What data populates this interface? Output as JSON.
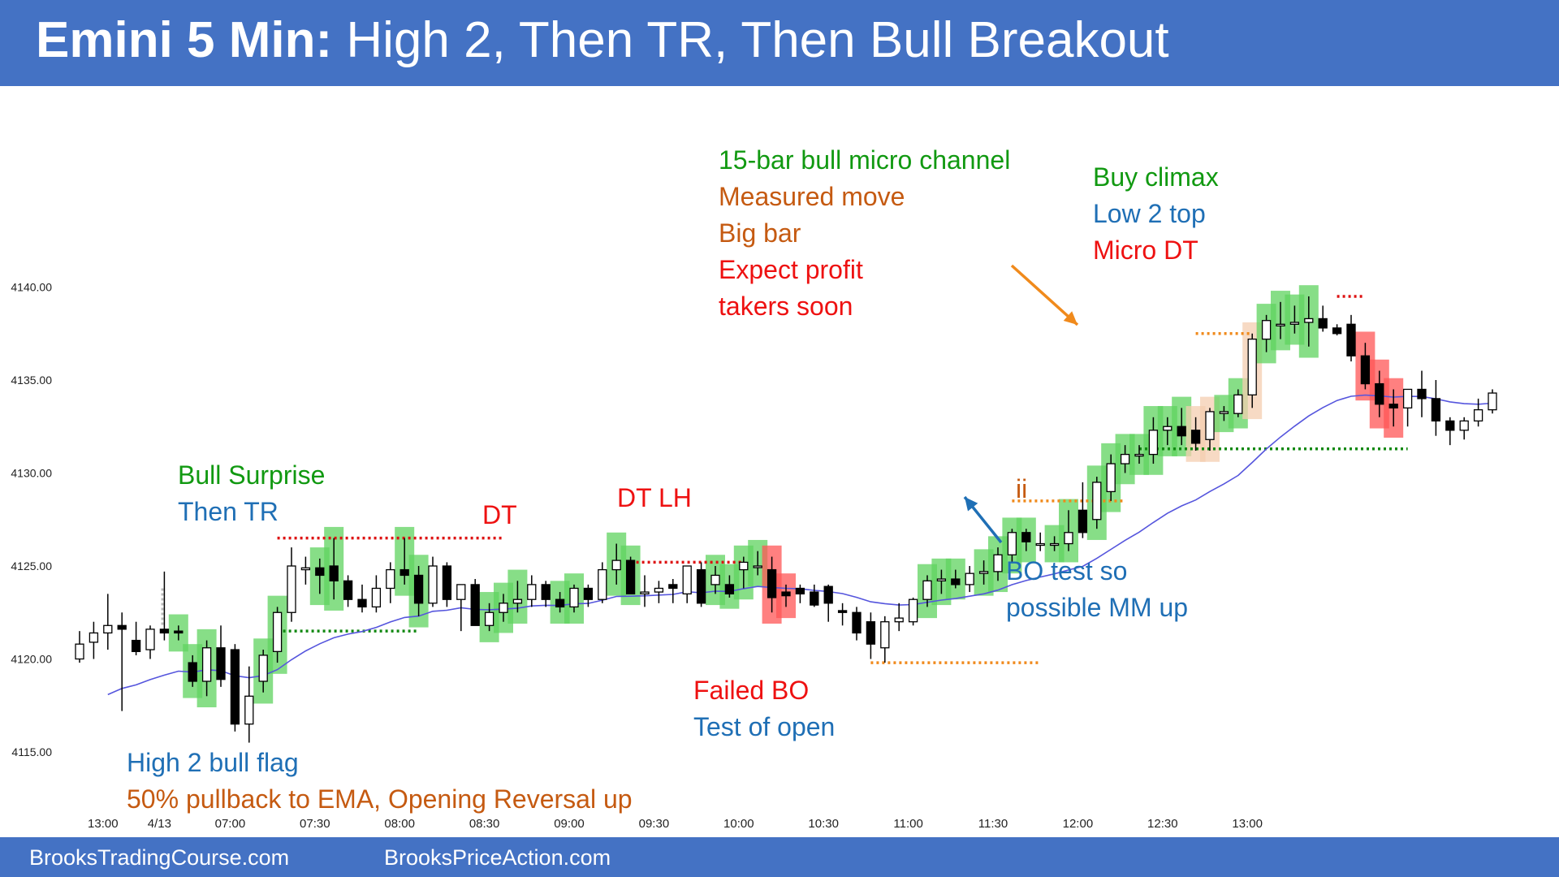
{
  "title": {
    "bold": "Emini 5 Min:",
    "rest": "High 2, Then TR, Then Bull Breakout"
  },
  "footer": {
    "left": "BrooksTradingCourse.com",
    "right": "BrooksPriceAction.com"
  },
  "colors": {
    "header": "#4472C4",
    "bull_highlight": "#5FD35F",
    "bear_highlight": "#FF5555",
    "inside_highlight": "#F4CDB0",
    "ema": "#5555DD",
    "green_text": "#119911",
    "blue_text": "#1F6FB5",
    "orange_text": "#C55A11",
    "red_text": "#EE1111",
    "dotted_orange": "#F08A1C",
    "dotted_green": "#118811",
    "dotted_red": "#DD1111"
  },
  "annotations": {
    "bull_surprise": [
      {
        "text": "Bull Surprise",
        "color": "#119911"
      },
      {
        "text": "Then TR",
        "color": "#1F6FB5"
      }
    ],
    "high2": [
      {
        "text": "High 2 bull flag",
        "color": "#1F6FB5"
      },
      {
        "text": "50% pullback to EMA, Opening Reversal up",
        "color": "#C55A11"
      }
    ],
    "dt": [
      {
        "text": "DT",
        "color": "#EE1111"
      }
    ],
    "dt_lh": [
      {
        "text": "DT LH",
        "color": "#EE1111"
      }
    ],
    "failed_bo": [
      {
        "text": "Failed BO",
        "color": "#EE1111"
      },
      {
        "text": "Test of open",
        "color": "#1F6FB5"
      }
    ],
    "micro_channel": [
      {
        "text": "15-bar bull micro channel",
        "color": "#119911"
      },
      {
        "text": "Measured move",
        "color": "#C55A11"
      },
      {
        "text": "Big bar",
        "color": "#C55A11"
      },
      {
        "text": "Expect profit",
        "color": "#EE1111"
      },
      {
        "text": "takers soon",
        "color": "#EE1111"
      }
    ],
    "buy_climax": [
      {
        "text": "Buy climax",
        "color": "#119911"
      },
      {
        "text": "Low 2 top",
        "color": "#1F6FB5"
      },
      {
        "text": "Micro DT",
        "color": "#EE1111"
      }
    ],
    "bo_test": [
      {
        "text": "BO test so",
        "color": "#1F6FB5"
      },
      {
        "text": "possible MM up",
        "color": "#1F6FB5"
      }
    ],
    "ii": [
      {
        "text": "ii",
        "color": "#C55A11"
      }
    ]
  },
  "chart_data": {
    "type": "candlestick",
    "y_ticks": [
      "4115.00",
      "4120.00",
      "4125.00",
      "4130.00",
      "4135.00",
      "4140.00"
    ],
    "y_tick_values": [
      4115,
      4120,
      4125,
      4130,
      4135,
      4140
    ],
    "ylim": [
      4113.5,
      4147.5
    ],
    "x_ticks": [
      "13:00",
      "4/13",
      "07:00",
      "07:30",
      "08:00",
      "08:30",
      "09:00",
      "09:30",
      "10:00",
      "10:30",
      "11:00",
      "11:30",
      "12:00",
      "12:30",
      "13:00"
    ],
    "x_tick_bars": [
      2,
      6,
      11,
      17,
      23,
      29,
      35,
      41,
      47,
      53,
      59,
      65,
      71,
      77,
      83
    ],
    "bars": [
      [
        4120.0,
        4121.5,
        4119.8,
        4120.8
      ],
      [
        4120.9,
        4122.0,
        4120.0,
        4121.4
      ],
      [
        4121.4,
        4123.5,
        4120.5,
        4121.8
      ],
      [
        4121.8,
        4122.5,
        4117.2,
        4121.6
      ],
      [
        4121.0,
        4122.0,
        4120.2,
        4120.4
      ],
      [
        4120.5,
        4121.8,
        4120.0,
        4121.6
      ],
      [
        4121.6,
        4124.7,
        4121.0,
        4121.4
      ],
      [
        4121.5,
        4121.8,
        4121.0,
        4121.4
      ],
      [
        4119.8,
        4120.2,
        4118.5,
        4118.8
      ],
      [
        4118.8,
        4121.0,
        4118.0,
        4120.6
      ],
      [
        4120.6,
        4121.8,
        4118.5,
        4118.9
      ],
      [
        4120.5,
        4120.8,
        4116.1,
        4116.5
      ],
      [
        4116.5,
        4119.6,
        4115.5,
        4118.0
      ],
      [
        4118.8,
        4120.5,
        4118.2,
        4120.2
      ],
      [
        4120.4,
        4122.8,
        4119.8,
        4122.5
      ],
      [
        4122.5,
        4126.0,
        4122.0,
        4125.0
      ],
      [
        4124.8,
        4125.5,
        4124.0,
        4124.9
      ],
      [
        4124.9,
        4125.4,
        4123.5,
        4124.5
      ],
      [
        4125.0,
        4126.5,
        4123.2,
        4124.2
      ],
      [
        4124.2,
        4124.5,
        4122.8,
        4123.2
      ],
      [
        4123.2,
        4124.0,
        4122.5,
        4122.8
      ],
      [
        4122.8,
        4124.5,
        4122.5,
        4123.8
      ],
      [
        4123.8,
        4125.2,
        4123.0,
        4124.8
      ],
      [
        4124.8,
        4126.5,
        4124.0,
        4124.5
      ],
      [
        4124.5,
        4125.0,
        4122.3,
        4123.0
      ],
      [
        4123.0,
        4125.5,
        4122.8,
        4125.0
      ],
      [
        4125.0,
        4125.2,
        4122.8,
        4123.2
      ],
      [
        4123.2,
        4124.0,
        4121.5,
        4124.0
      ],
      [
        4124.0,
        4124.3,
        4121.8,
        4121.8
      ],
      [
        4121.8,
        4123.0,
        4121.5,
        4122.5
      ],
      [
        4122.5,
        4123.5,
        4122.0,
        4123.0
      ],
      [
        4123.0,
        4124.2,
        4122.5,
        4123.2
      ],
      [
        4123.2,
        4124.5,
        4122.8,
        4124.0
      ],
      [
        4124.0,
        4124.2,
        4122.8,
        4123.2
      ],
      [
        4123.2,
        4123.6,
        4122.5,
        4122.8
      ],
      [
        4122.8,
        4124.0,
        4122.5,
        4123.8
      ],
      [
        4123.8,
        4124.0,
        4122.8,
        4123.2
      ],
      [
        4123.2,
        4125.2,
        4123.0,
        4124.8
      ],
      [
        4124.8,
        4126.2,
        4124.0,
        4125.3
      ],
      [
        4125.3,
        4125.5,
        4123.5,
        4123.5
      ],
      [
        4123.5,
        4124.5,
        4122.8,
        4123.6
      ],
      [
        4123.6,
        4124.2,
        4123.0,
        4123.8
      ],
      [
        4124.0,
        4124.3,
        4123.0,
        4123.8
      ],
      [
        4123.5,
        4125.0,
        4123.0,
        4125.0
      ],
      [
        4124.8,
        4125.2,
        4122.8,
        4123.0
      ],
      [
        4124.0,
        4125.0,
        4123.5,
        4124.5
      ],
      [
        4124.0,
        4124.5,
        4123.3,
        4123.5
      ],
      [
        4124.8,
        4125.5,
        4123.8,
        4125.2
      ],
      [
        4125.0,
        4125.8,
        4124.5,
        4125.0
      ],
      [
        4124.8,
        4125.5,
        4122.5,
        4123.3
      ],
      [
        4123.6,
        4124.0,
        4122.8,
        4123.4
      ],
      [
        4123.8,
        4124.0,
        4123.0,
        4123.5
      ],
      [
        4123.6,
        4124.0,
        4122.8,
        4122.9
      ],
      [
        4123.9,
        4124.0,
        4122.0,
        4123.0
      ],
      [
        4122.6,
        4123.0,
        4121.8,
        4122.5
      ],
      [
        4122.5,
        4122.8,
        4121.0,
        4121.4
      ],
      [
        4122.0,
        4122.5,
        4120.0,
        4120.8
      ],
      [
        4120.6,
        4122.3,
        4119.8,
        4122.0
      ],
      [
        4122.0,
        4123.0,
        4121.5,
        4122.2
      ],
      [
        4122.0,
        4123.3,
        4121.8,
        4123.2
      ],
      [
        4123.2,
        4124.5,
        4122.8,
        4124.2
      ],
      [
        4124.2,
        4124.8,
        4123.5,
        4124.3
      ],
      [
        4124.3,
        4124.8,
        4123.8,
        4124.0
      ],
      [
        4124.0,
        4125.0,
        4123.6,
        4124.6
      ],
      [
        4124.6,
        4125.3,
        4124.0,
        4124.7
      ],
      [
        4124.7,
        4126.0,
        4124.2,
        4125.6
      ],
      [
        4125.6,
        4127.0,
        4125.2,
        4126.8
      ],
      [
        4126.8,
        4127.0,
        4125.8,
        4126.3
      ],
      [
        4126.2,
        4126.8,
        4125.8,
        4126.2
      ],
      [
        4126.2,
        4126.6,
        4125.8,
        4126.2
      ],
      [
        4126.2,
        4128.0,
        4125.8,
        4126.8
      ],
      [
        4128.0,
        4129.5,
        4126.5,
        4126.8
      ],
      [
        4127.5,
        4129.8,
        4127.0,
        4129.5
      ],
      [
        4129.0,
        4131.0,
        4128.5,
        4130.5
      ],
      [
        4130.5,
        4131.5,
        4130.0,
        4131.0
      ],
      [
        4131.0,
        4131.5,
        4130.5,
        4131.0
      ],
      [
        4131.0,
        4133.0,
        4130.5,
        4132.3
      ],
      [
        4132.3,
        4133.0,
        4131.5,
        4132.5
      ],
      [
        4132.5,
        4133.5,
        4131.5,
        4132.0
      ],
      [
        4132.3,
        4133.0,
        4131.2,
        4131.6
      ],
      [
        4131.8,
        4133.5,
        4131.2,
        4133.3
      ],
      [
        4133.2,
        4133.6,
        4132.8,
        4133.3
      ],
      [
        4133.2,
        4134.5,
        4133.0,
        4134.2
      ],
      [
        4134.2,
        4137.5,
        4133.5,
        4137.2
      ],
      [
        4137.2,
        4138.5,
        4136.5,
        4138.2
      ],
      [
        4138.0,
        4139.2,
        4137.2,
        4138.0
      ],
      [
        4138.0,
        4139.0,
        4137.5,
        4138.1
      ],
      [
        4138.1,
        4139.5,
        4136.8,
        4138.3
      ],
      [
        4138.3,
        4139.0,
        4137.6,
        4137.8
      ],
      [
        4137.8,
        4138.0,
        4137.4,
        4137.5
      ],
      [
        4138.0,
        4138.5,
        4136.0,
        4136.3
      ],
      [
        4136.3,
        4137.0,
        4134.5,
        4134.8
      ],
      [
        4134.8,
        4135.5,
        4133.0,
        4133.7
      ],
      [
        4133.7,
        4134.5,
        4132.5,
        4133.5
      ],
      [
        4133.5,
        4134.5,
        4132.5,
        4134.5
      ],
      [
        4134.5,
        4135.5,
        4133.0,
        4134.0
      ],
      [
        4134.0,
        4135.0,
        4132.0,
        4132.8
      ],
      [
        4132.8,
        4133.0,
        4131.5,
        4132.3
      ],
      [
        4132.3,
        4133.0,
        4131.8,
        4132.8
      ],
      [
        4132.8,
        4134.0,
        4132.5,
        4133.4
      ],
      [
        4133.4,
        4134.5,
        4133.2,
        4134.3
      ]
    ]
  }
}
